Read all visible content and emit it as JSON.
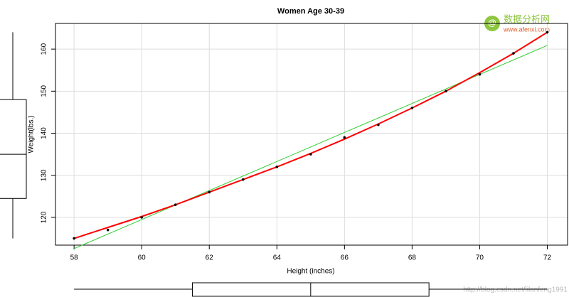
{
  "chart_data": {
    "type": "scatter",
    "title": "Women Age 30-39",
    "x_label": "Height (inches)",
    "y_label": "Weight(lbs.)",
    "x": [
      58,
      59,
      60,
      61,
      62,
      63,
      64,
      65,
      66,
      67,
      68,
      69,
      70,
      71,
      72
    ],
    "values": [
      115,
      117,
      120,
      123,
      126,
      129,
      132,
      135,
      139,
      142,
      146,
      150,
      154,
      159,
      164
    ],
    "color": "#000000",
    "fit": {
      "x": [
        58,
        72
      ],
      "values": [
        112.58,
        160.88
      ],
      "color": "#33cc33"
    },
    "smooth": {
      "values": [
        115,
        117.6,
        120.2,
        123,
        126,
        129,
        132,
        135.2,
        138.6,
        142.2,
        146,
        150,
        154.4,
        159,
        164
      ],
      "color": "#ff0000"
    },
    "x_box": {
      "whisker": [
        58,
        72
      ],
      "box": [
        61.5,
        68.5
      ],
      "median": 65
    },
    "y_box": {
      "whisker": [
        115,
        164
      ],
      "box": [
        124.5,
        148
      ],
      "median": 135
    },
    "xlim": [
      57.45,
      72.6
    ],
    "ylim": [
      113.4,
      166.1
    ],
    "xticks": [
      58,
      60,
      62,
      64,
      66,
      68,
      70,
      72
    ],
    "yticks": [
      120,
      130,
      140,
      150,
      160
    ],
    "grid": true
  },
  "watermarks": {
    "site_name": "数据分析网",
    "site_url": "www.afenxi.com",
    "blog_url": "http://blog.csdn.net/lilanfeng1991"
  }
}
